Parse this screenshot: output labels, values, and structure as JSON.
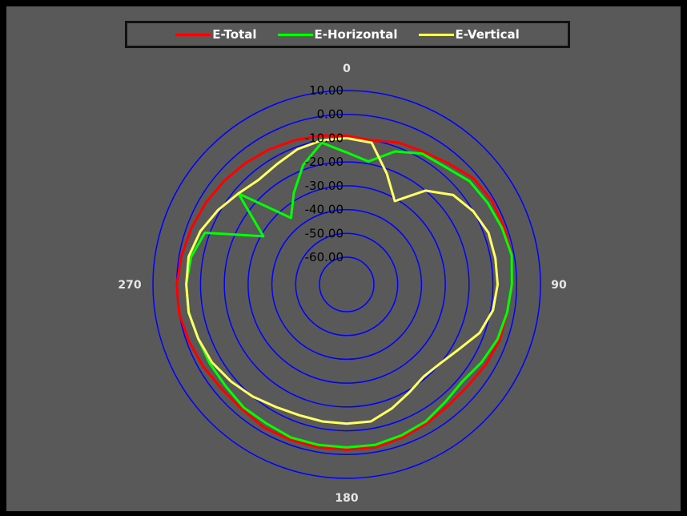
{
  "chart_data": {
    "type": "polar-line",
    "title": "",
    "radial_axis": {
      "min": -60,
      "max": 10,
      "ticks": [
        "10.00",
        "0.00",
        "-10.00",
        "-20.00",
        "-30.00",
        "-40.00",
        "-50.00",
        "-60.00"
      ],
      "tick_values": [
        10,
        0,
        -10,
        -20,
        -30,
        -40,
        -50,
        -60
      ]
    },
    "angular_axis": {
      "labels": [
        "0",
        "90",
        "180",
        "270"
      ],
      "direction": "clockwise",
      "zero_at": "top"
    },
    "legend": {
      "placement": "top"
    },
    "series": [
      {
        "name": "E-Total",
        "color": "#ff0000",
        "theta": [
          0,
          10,
          20,
          30,
          40,
          50,
          60,
          70,
          80,
          90,
          100,
          110,
          120,
          130,
          140,
          150,
          160,
          170,
          180,
          190,
          200,
          210,
          220,
          230,
          240,
          250,
          260,
          270,
          280,
          290,
          300,
          310,
          320,
          330,
          340,
          350
        ],
        "r": [
          -9,
          -10,
          -8,
          -7,
          -5,
          -2,
          -1,
          -1,
          -1,
          -2,
          -3,
          -3,
          -4,
          -5,
          -5,
          -4,
          -3,
          -2,
          -2,
          -2,
          -2,
          -2,
          -3,
          -3,
          -2,
          -1,
          0,
          0,
          -1,
          -2,
          -3,
          -4,
          -5,
          -6,
          -7,
          -8
        ]
      },
      {
        "name": "E-Horizontal",
        "color": "#00ff00",
        "theta": [
          0,
          10,
          20,
          30,
          40,
          50,
          60,
          70,
          80,
          90,
          100,
          110,
          120,
          130,
          140,
          150,
          160,
          170,
          180,
          190,
          200,
          210,
          220,
          230,
          240,
          250,
          260,
          270,
          280,
          290,
          300,
          310,
          320,
          330,
          340,
          350
        ],
        "r": [
          -16,
          -19,
          -12,
          -8,
          -7,
          -4,
          -3,
          -2,
          -1,
          -2,
          -3,
          -4,
          -6,
          -8,
          -7,
          -5,
          -4,
          -3,
          -3,
          -3,
          -3,
          -4,
          -4,
          -5,
          -5,
          -5,
          -4,
          -4,
          -5,
          -8,
          -31,
          -12,
          -35,
          -27,
          -18,
          -11
        ]
      },
      {
        "name": "E-Vertical",
        "color": "#ffff66",
        "theta": [
          0,
          10,
          20,
          30,
          40,
          50,
          60,
          70,
          80,
          90,
          100,
          110,
          120,
          130,
          140,
          150,
          160,
          170,
          180,
          190,
          200,
          210,
          220,
          230,
          240,
          250,
          260,
          270,
          280,
          290,
          300,
          310,
          320,
          330,
          340,
          350
        ],
        "r": [
          -10,
          -11,
          -22,
          -31,
          -20,
          -13,
          -10,
          -8,
          -8,
          -8,
          -9,
          -12,
          -17,
          -20,
          -21,
          -19,
          -16,
          -13,
          -13,
          -13,
          -13,
          -12,
          -10,
          -8,
          -6,
          -5,
          -4,
          -4,
          -4,
          -6,
          -9,
          -12,
          -14,
          -13,
          -11,
          -10
        ]
      }
    ]
  }
}
